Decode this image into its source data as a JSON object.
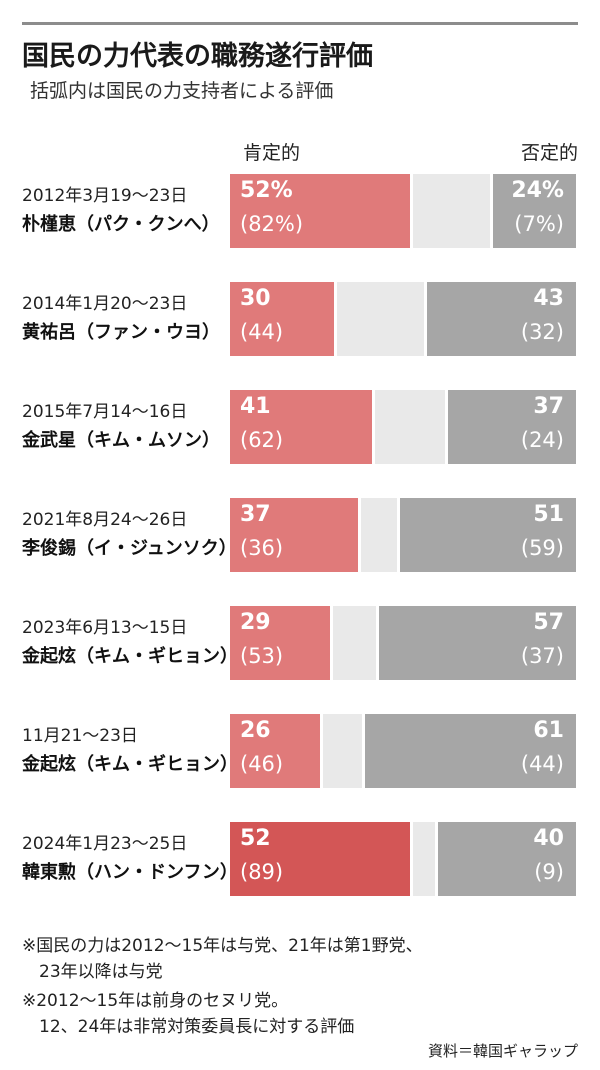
{
  "title": "国民の力代表の職務遂行評価",
  "subtitle": "括弧内は国民の力支持者による評価",
  "chart_data": {
    "type": "bar",
    "stacked": true,
    "orientation": "horizontal",
    "title": "国民の力代表の職務遂行評価",
    "subtitle": "括弧内は国民の力支持者による評価",
    "legend": {
      "positive": "肯定的",
      "negative": "否定的"
    },
    "rows": [
      {
        "date": "2012年3月19～23日",
        "name": "朴槿恵（パク・クンへ）",
        "positive": 52,
        "positive_label": "52%",
        "positive_supporters": 82,
        "positive_supporters_label": "(82%)",
        "negative": 24,
        "negative_label": "24%",
        "negative_supporters": 7,
        "negative_supporters_label": "(7%)",
        "highlight": false
      },
      {
        "date": "2014年1月20～23日",
        "name": "黄祐呂（ファン・ウヨ）",
        "positive": 30,
        "positive_label": "30",
        "positive_supporters": 44,
        "positive_supporters_label": "(44)",
        "negative": 43,
        "negative_label": "43",
        "negative_supporters": 32,
        "negative_supporters_label": "(32)",
        "highlight": false
      },
      {
        "date": "2015年7月14～16日",
        "name": "金武星（キム・ムソン）",
        "positive": 41,
        "positive_label": "41",
        "positive_supporters": 62,
        "positive_supporters_label": "(62)",
        "negative": 37,
        "negative_label": "37",
        "negative_supporters": 24,
        "negative_supporters_label": "(24)",
        "highlight": false
      },
      {
        "date": "2021年8月24～26日",
        "name": "李俊錫（イ・ジュンソク）",
        "positive": 37,
        "positive_label": "37",
        "positive_supporters": 36,
        "positive_supporters_label": "(36)",
        "negative": 51,
        "negative_label": "51",
        "negative_supporters": 59,
        "negative_supporters_label": "(59)",
        "highlight": false
      },
      {
        "date": "2023年6月13～15日",
        "name": "金起炫（キム・ギヒョン）",
        "positive": 29,
        "positive_label": "29",
        "positive_supporters": 53,
        "positive_supporters_label": "(53)",
        "negative": 57,
        "negative_label": "57",
        "negative_supporters": 37,
        "negative_supporters_label": "(37)",
        "highlight": false
      },
      {
        "date": "11月21～23日",
        "name": "金起炫（キム・ギヒョン）",
        "positive": 26,
        "positive_label": "26",
        "positive_supporters": 46,
        "positive_supporters_label": "(46)",
        "negative": 61,
        "negative_label": "61",
        "negative_supporters": 44,
        "negative_supporters_label": "(44)",
        "highlight": false
      },
      {
        "date": "2024年1月23～25日",
        "name": "韓東勲（ハン・ドンフン）",
        "positive": 52,
        "positive_label": "52",
        "positive_supporters": 89,
        "positive_supporters_label": "(89)",
        "negative": 40,
        "negative_label": "40",
        "negative_supporters": 9,
        "negative_supporters_label": "(9)",
        "highlight": true
      }
    ],
    "xlim": [
      0,
      100
    ]
  },
  "notes": [
    "※国民の力は2012～15年は与党、21年は第1野党、",
    "　23年以降は与党",
    "※2012～15年は前身のセヌリ党。",
    "　12、24年は非常対策委員長に対する評価"
  ],
  "source": "資料＝韓国ギャラップ",
  "colors": {
    "positive": "#e07a7a",
    "positive_highlight": "#d35656",
    "middle": "#e9e9e9",
    "negative": "#a6a6a6"
  }
}
